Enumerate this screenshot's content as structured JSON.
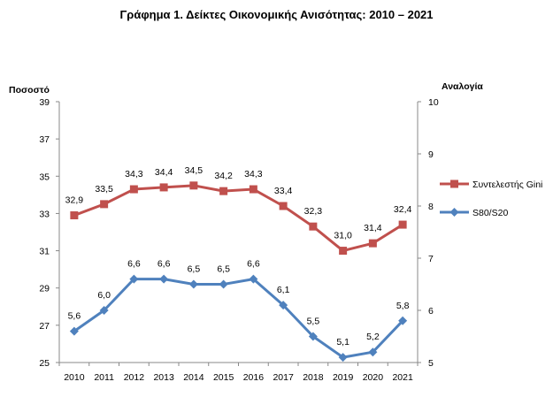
{
  "chart_data": {
    "type": "line",
    "title": "Γράφημα 1. Δείκτες Οικονομικής Ανισότητας: 2010 – 2021",
    "x": [
      "2010",
      "2011",
      "2012",
      "2013",
      "2014",
      "2015",
      "2016",
      "2017",
      "2018",
      "2019",
      "2020",
      "2021"
    ],
    "left_axis": {
      "label": "Ποσοστό",
      "ylim": [
        25,
        39
      ],
      "ticks": [
        "25",
        "27",
        "29",
        "31",
        "33",
        "35",
        "37",
        "39"
      ]
    },
    "right_axis": {
      "label": "Αναλογία",
      "ylim": [
        5,
        10
      ],
      "ticks": [
        "5",
        "6",
        "7",
        "8",
        "9",
        "10"
      ]
    },
    "series": [
      {
        "name": "Συντελεστής Gini",
        "axis": "left",
        "color": "#C0504D",
        "marker": "square",
        "values": [
          32.9,
          33.5,
          34.3,
          34.4,
          34.5,
          34.2,
          34.3,
          33.4,
          32.3,
          31.0,
          31.4,
          32.4
        ],
        "labels": [
          "32,9",
          "33,5",
          "34,3",
          "34,4",
          "34,5",
          "34,2",
          "34,3",
          "33,4",
          "32,3",
          "31,0",
          "31,4",
          "32,4"
        ]
      },
      {
        "name": "S80/S20",
        "axis": "right",
        "color": "#4F81BD",
        "marker": "diamond",
        "values": [
          5.6,
          6.0,
          6.6,
          6.6,
          6.5,
          6.5,
          6.6,
          6.1,
          5.5,
          5.1,
          5.2,
          5.8
        ],
        "labels": [
          "5,6",
          "6,0",
          "6,6",
          "6,6",
          "6,5",
          "6,5",
          "6,6",
          "6,1",
          "5,5",
          "5,1",
          "5,2",
          "5,8"
        ]
      }
    ],
    "grid": false,
    "legend": "right"
  }
}
